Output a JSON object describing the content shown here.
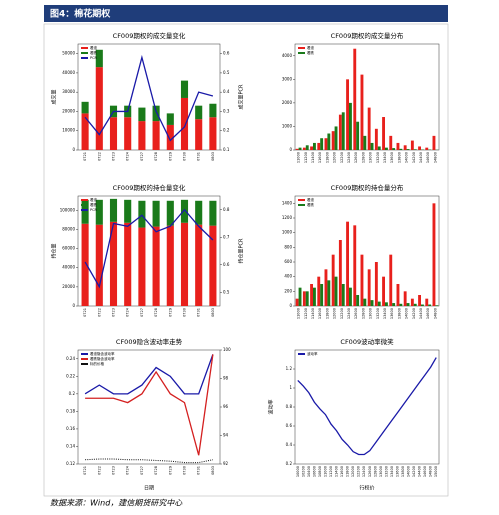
{
  "header": {
    "title": "图4：棉花期权"
  },
  "footer": {
    "source": "数据来源：Wind，建信期货研究中心"
  },
  "chart_data": [
    {
      "type": "bar_line",
      "stacked": true,
      "title": "CF009期权的成交量变化",
      "ylabel": "成交量",
      "y2label": "成交量PCR",
      "categories": [
        "0721",
        "0722",
        "0723",
        "0724",
        "0727",
        "0728",
        "0729",
        "0730",
        "0731",
        "0803"
      ],
      "series": [
        {
          "name": "看涨",
          "color": "#e8201c",
          "mark": "bar",
          "values": [
            19000,
            43000,
            17000,
            17000,
            15000,
            15000,
            13000,
            27000,
            16000,
            17000
          ]
        },
        {
          "name": "看跌",
          "color": "#1a7a1a",
          "mark": "bar",
          "values": [
            6000,
            9000,
            6000,
            6000,
            7000,
            8000,
            6000,
            9000,
            7000,
            7000
          ]
        },
        {
          "name": "PCR",
          "color": "#1a1aa8",
          "mark": "line",
          "axis": "y2",
          "values": [
            0.27,
            0.18,
            0.3,
            0.3,
            0.58,
            0.3,
            0.15,
            0.22,
            0.4,
            0.38
          ]
        }
      ],
      "ylim": [
        0,
        55000
      ],
      "yticks": [
        0,
        10000,
        20000,
        30000,
        40000,
        50000
      ],
      "y2lim": [
        0.1,
        0.65
      ],
      "y2ticks": [
        0.1,
        0.2,
        0.3,
        0.4,
        0.5,
        0.6
      ]
    },
    {
      "type": "bar",
      "title": "CF009期权的成交量分布",
      "categories": [
        "11000",
        "11200",
        "11400",
        "11600",
        "11800",
        "12000",
        "12200",
        "12400",
        "12600",
        "12800",
        "13000",
        "13200",
        "13400",
        "13600",
        "13800",
        "14000",
        "14200",
        "14400",
        "14600",
        "14800"
      ],
      "series": [
        {
          "name": "看涨",
          "color": "#e8201c",
          "mark": "bar",
          "values": [
            50,
            100,
            150,
            300,
            500,
            800,
            1500,
            3000,
            4300,
            3200,
            1800,
            900,
            1400,
            600,
            300,
            200,
            400,
            150,
            100,
            600
          ]
        },
        {
          "name": "看跌",
          "color": "#1a7a1a",
          "mark": "bar",
          "values": [
            100,
            200,
            300,
            500,
            700,
            1000,
            1600,
            2000,
            1200,
            600,
            300,
            150,
            100,
            80,
            50,
            40,
            30,
            20,
            20,
            10
          ]
        }
      ],
      "ylim": [
        0,
        4500
      ],
      "yticks": [
        0,
        1000,
        2000,
        3000,
        4000
      ]
    },
    {
      "type": "bar_line",
      "stacked": true,
      "title": "CF009期权的持仓量变化",
      "ylabel": "持仓量",
      "y2label": "持仓量PCR",
      "categories": [
        "0721",
        "0722",
        "0723",
        "0724",
        "0727",
        "0728",
        "0729",
        "0730",
        "0731",
        "0803"
      ],
      "series": [
        {
          "name": "看涨",
          "color": "#e8201c",
          "mark": "bar",
          "values": [
            86000,
            85000,
            88000,
            87000,
            82000,
            83000,
            84000,
            87000,
            85000,
            84000
          ]
        },
        {
          "name": "看跌",
          "color": "#1a7a1a",
          "mark": "bar",
          "values": [
            25000,
            26000,
            24000,
            24000,
            28000,
            27000,
            26000,
            24000,
            25000,
            26000
          ]
        },
        {
          "name": "PCR",
          "color": "#1a1aa8",
          "mark": "line",
          "axis": "y2",
          "values": [
            0.61,
            0.52,
            0.75,
            0.74,
            0.78,
            0.72,
            0.74,
            0.8,
            0.74,
            0.69
          ]
        }
      ],
      "ylim": [
        0,
        115000
      ],
      "yticks": [
        0,
        20000,
        40000,
        60000,
        80000,
        100000
      ],
      "y2lim": [
        0.45,
        0.85
      ],
      "y2ticks": [
        0.5,
        0.6,
        0.7,
        0.8
      ]
    },
    {
      "type": "bar",
      "title": "CF009期权的持仓量分布",
      "categories": [
        "11000",
        "11200",
        "11400",
        "11600",
        "11800",
        "12000",
        "12200",
        "12400",
        "12600",
        "12800",
        "13000",
        "13200",
        "13400",
        "13600",
        "13800",
        "14000",
        "14200",
        "14400",
        "14600",
        "14800"
      ],
      "series": [
        {
          "name": "看涨",
          "color": "#e8201c",
          "mark": "bar",
          "values": [
            100,
            200,
            300,
            400,
            500,
            700,
            900,
            1150,
            1100,
            700,
            500,
            600,
            400,
            700,
            300,
            200,
            100,
            150,
            100,
            1400
          ]
        },
        {
          "name": "看跌",
          "color": "#1a7a1a",
          "mark": "bar",
          "values": [
            250,
            200,
            250,
            300,
            350,
            400,
            300,
            250,
            150,
            100,
            80,
            60,
            50,
            40,
            30,
            40,
            30,
            20,
            20,
            10
          ]
        }
      ],
      "ylim": [
        0,
        1500
      ],
      "yticks": [
        0,
        200,
        400,
        600,
        800,
        1000,
        1200,
        1400
      ]
    },
    {
      "type": "line",
      "title": "CF009隐含波动率走势",
      "xlabel": "日期",
      "categories": [
        "0721",
        "0722",
        "0723",
        "0724",
        "0727",
        "0728",
        "0729",
        "0730",
        "0731",
        "0803"
      ],
      "series": [
        {
          "name": "看涨隐含波动率",
          "color": "#1a1aa8",
          "mark": "line",
          "values": [
            0.2,
            0.21,
            0.2,
            0.2,
            0.21,
            0.23,
            0.22,
            0.2,
            0.2,
            0.245
          ]
        },
        {
          "name": "看跌隐含波动率",
          "color": "#d42020",
          "mark": "line",
          "values": [
            0.195,
            0.195,
            0.195,
            0.19,
            0.2,
            0.225,
            0.2,
            0.19,
            0.13,
            0.245
          ]
        },
        {
          "name": "标的价格",
          "color": "#111111",
          "mark": "line",
          "dash": true,
          "axis": "y2",
          "values": [
            92.3,
            92.35,
            92.35,
            92.3,
            92.3,
            92.25,
            92.2,
            92.1,
            92.1,
            92.3
          ]
        }
      ],
      "ylim": [
        0.12,
        0.25
      ],
      "yticks": [
        0.12,
        0.14,
        0.16,
        0.18,
        0.2,
        0.22,
        0.24
      ],
      "y2lim": [
        92,
        100
      ],
      "y2ticks": [
        92,
        94,
        96,
        98,
        100
      ]
    },
    {
      "type": "line",
      "title": "CF009波动率微笑",
      "xlabel": "行权价",
      "ylabel": "波动率",
      "categories": [
        "10000",
        "10200",
        "10400",
        "10600",
        "10800",
        "11000",
        "11200",
        "11400",
        "11600",
        "11800",
        "12000",
        "12200",
        "12400",
        "12600",
        "12800",
        "13000",
        "13200",
        "13400",
        "13600",
        "13800",
        "14000",
        "14200",
        "14400",
        "14600",
        "14800",
        "15000"
      ],
      "series": [
        {
          "name": "波动率",
          "color": "#1a1aa8",
          "mark": "line",
          "values": [
            1.08,
            1.02,
            0.95,
            0.85,
            0.78,
            0.72,
            0.62,
            0.55,
            0.46,
            0.4,
            0.33,
            0.3,
            0.3,
            0.34,
            0.42,
            0.5,
            0.58,
            0.66,
            0.74,
            0.82,
            0.9,
            0.98,
            1.06,
            1.14,
            1.22,
            1.32
          ]
        }
      ],
      "ylim": [
        0.2,
        1.4
      ],
      "yticks": [
        0.2,
        0.4,
        0.6,
        0.8,
        1.0,
        1.2
      ]
    }
  ]
}
